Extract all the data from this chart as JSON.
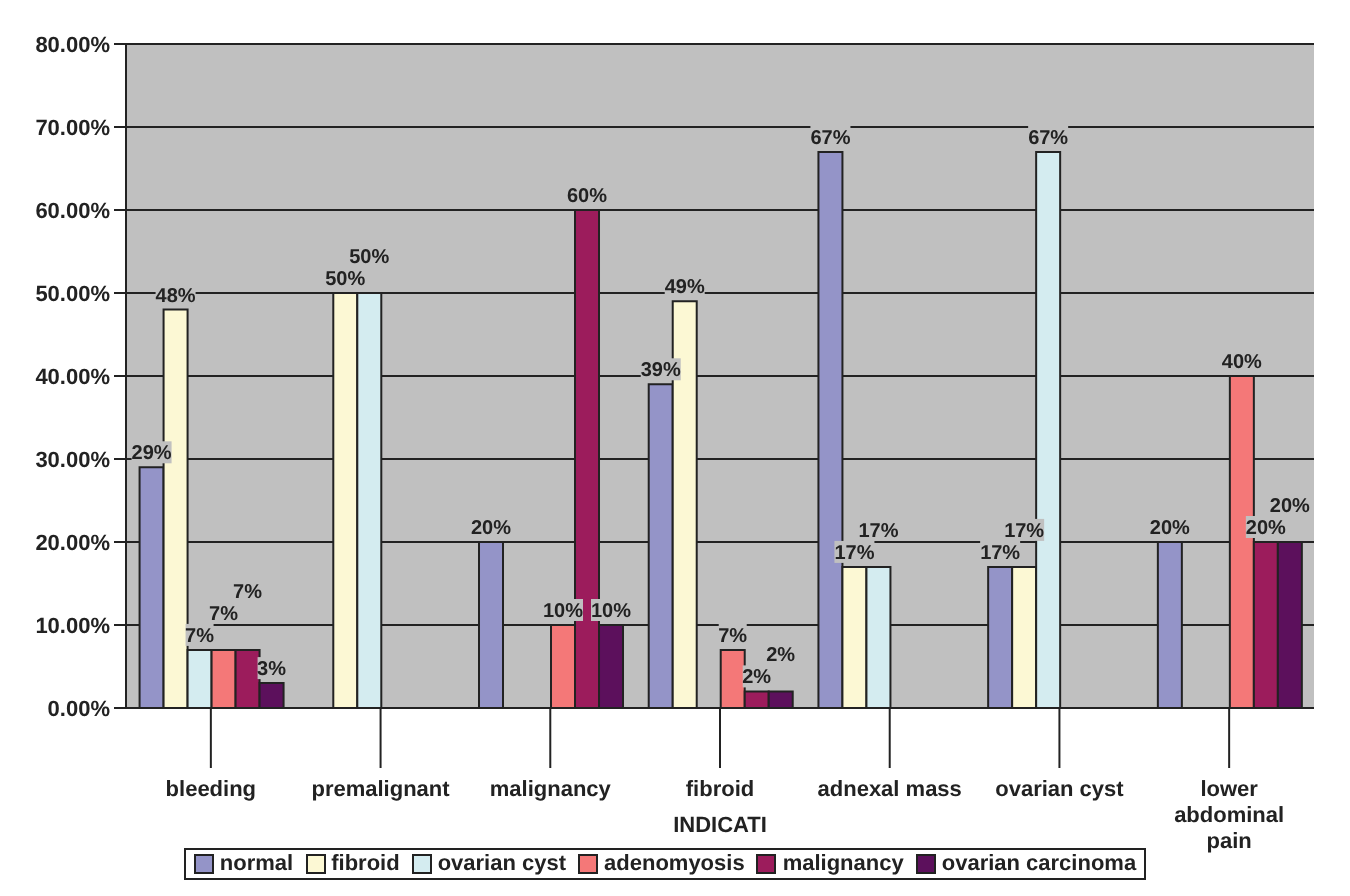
{
  "chart_data": {
    "type": "bar",
    "xlabel": "INDICATI",
    "categories": [
      "bleeding",
      "premalignant",
      "malignancy",
      "fibroid",
      "adnexal mass",
      "ovarian cyst",
      "lower abdominal pain"
    ],
    "series": [
      {
        "name": "normal",
        "color": "#9494c8",
        "values": [
          29,
          null,
          20,
          39,
          67,
          17,
          20
        ],
        "value_labels": [
          "29%",
          null,
          "20%",
          "39%",
          "67%",
          "17%",
          "20%"
        ]
      },
      {
        "name": "fibroid",
        "color": "#fcf8d4",
        "values": [
          48,
          50,
          null,
          49,
          17,
          17,
          null
        ],
        "value_labels": [
          "48%",
          "50%",
          null,
          "49%",
          "17%",
          "17%",
          null
        ]
      },
      {
        "name": "ovarian cyst",
        "color": "#d4ecf0",
        "values": [
          7,
          50,
          null,
          null,
          17,
          67,
          null
        ],
        "value_labels": [
          "7%",
          "50%",
          null,
          null,
          "17%",
          "67%",
          null
        ]
      },
      {
        "name": "adenomyosis",
        "color": "#f47878",
        "values": [
          7,
          null,
          10,
          7,
          null,
          null,
          40
        ],
        "value_labels": [
          "7%",
          null,
          "10%",
          "7%",
          null,
          null,
          "40%"
        ]
      },
      {
        "name": "malignancy",
        "color": "#9c1c5c",
        "values": [
          7,
          null,
          60,
          2,
          null,
          null,
          20
        ],
        "value_labels": [
          "7%",
          null,
          "60%",
          "2%",
          null,
          null,
          "20%"
        ]
      },
      {
        "name": "ovarian carcinoma",
        "color": "#5c105c",
        "values": [
          3,
          null,
          10,
          2,
          null,
          null,
          20
        ],
        "value_labels": [
          "3%",
          null,
          "10%",
          "2%",
          null,
          null,
          "20%"
        ]
      }
    ],
    "ylim": [
      0,
      80
    ],
    "yticks": [
      {
        "value": 0,
        "label": "0.00%"
      },
      {
        "value": 10,
        "label": "10.00%"
      },
      {
        "value": 20,
        "label": "20.00%"
      },
      {
        "value": 30,
        "label": "30.00%"
      },
      {
        "value": 40,
        "label": "40.00%"
      },
      {
        "value": 50,
        "label": "50.00%"
      },
      {
        "value": 60,
        "label": "60.00%"
      },
      {
        "value": 70,
        "label": "70.00%"
      },
      {
        "value": 80,
        "label": "80.00%"
      }
    ],
    "grid": "y",
    "legend": "bottom"
  }
}
